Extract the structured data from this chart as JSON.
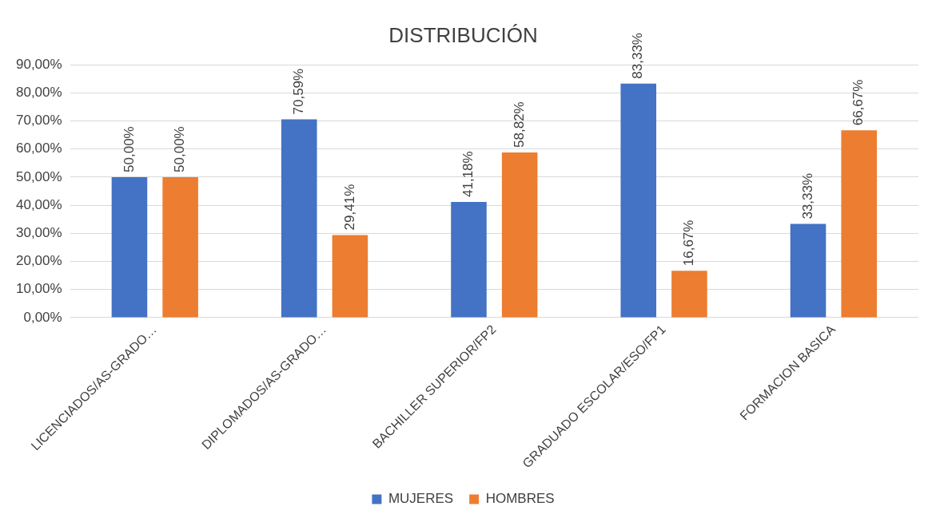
{
  "chart_data": {
    "type": "bar",
    "title": "DISTRIBUCIÓN",
    "categories": [
      "LICENCIADOS/AS-GRADO…",
      "DIPLOMADOS/AS-GRADO…",
      "BACHILLER SUPERIOR/FP2",
      "GRADUADO ESCOLAR/ESO/FP1",
      "FORMACION BASICA"
    ],
    "series": [
      {
        "name": "MUJERES",
        "color": "#4472c4",
        "values": [
          50.0,
          70.59,
          41.18,
          83.33,
          33.33
        ],
        "value_labels": [
          "50,00%",
          "70,59%",
          "41,18%",
          "83,33%",
          "33,33%"
        ]
      },
      {
        "name": "HOMBRES",
        "color": "#ed7d31",
        "values": [
          50.0,
          29.41,
          58.82,
          16.67,
          66.67
        ],
        "value_labels": [
          "50,00%",
          "29,41%",
          "58,82%",
          "16,67%",
          "66,67%"
        ]
      }
    ],
    "ylim": [
      0,
      90
    ],
    "yticks": [
      {
        "value": 0,
        "label": "0,00%"
      },
      {
        "value": 10,
        "label": "10,00%"
      },
      {
        "value": 20,
        "label": "20,00%"
      },
      {
        "value": 30,
        "label": "30,00%"
      },
      {
        "value": 40,
        "label": "40,00%"
      },
      {
        "value": 50,
        "label": "50,00%"
      },
      {
        "value": 60,
        "label": "60,00%"
      },
      {
        "value": 70,
        "label": "70,00%"
      },
      {
        "value": 80,
        "label": "80,00%"
      },
      {
        "value": 90,
        "label": "90,00%"
      }
    ],
    "grid": "y",
    "legend": "bottom"
  }
}
